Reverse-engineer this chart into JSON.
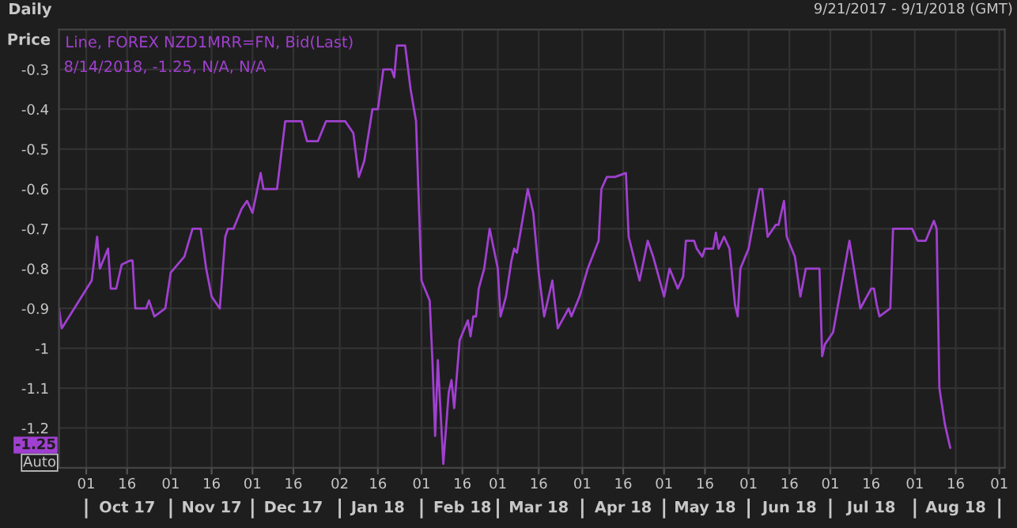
{
  "chart_data": {
    "type": "line",
    "title": "Daily",
    "subtitle": "9/21/2017 - 9/1/2018 (GMT)",
    "ylabel": "Price",
    "x": [
      "2017-09-21",
      "2017-09-22",
      "2017-10-03",
      "2017-10-05",
      "2017-10-06",
      "2017-10-09",
      "2017-10-10",
      "2017-10-12",
      "2017-10-14",
      "2017-10-17",
      "2017-10-18",
      "2017-10-19",
      "2017-10-23",
      "2017-10-24",
      "2017-10-26",
      "2017-10-30",
      "2017-11-01",
      "2017-11-06",
      "2017-11-09",
      "2017-11-12",
      "2017-11-14",
      "2017-11-16",
      "2017-11-19",
      "2017-11-21",
      "2017-11-22",
      "2017-11-24",
      "2017-11-27",
      "2017-11-29",
      "2017-12-01",
      "2017-12-04",
      "2017-12-05",
      "2017-12-10",
      "2017-12-13",
      "2017-12-19",
      "2017-12-21",
      "2017-12-25",
      "2017-12-28",
      "2018-01-04",
      "2018-01-07",
      "2018-01-09",
      "2018-01-11",
      "2018-01-14",
      "2018-01-16",
      "2018-01-18",
      "2018-01-21",
      "2018-01-22",
      "2018-01-23",
      "2018-01-24",
      "2018-01-26",
      "2018-01-28",
      "2018-01-30",
      "2018-02-01",
      "2018-02-04",
      "2018-02-05",
      "2018-02-06",
      "2018-02-07",
      "2018-02-08",
      "2018-02-09",
      "2018-02-11",
      "2018-02-12",
      "2018-02-13",
      "2018-02-15",
      "2018-02-18",
      "2018-02-19",
      "2018-02-20",
      "2018-02-21",
      "2018-02-22",
      "2018-02-24",
      "2018-02-26",
      "2018-03-01",
      "2018-03-02",
      "2018-03-04",
      "2018-03-06",
      "2018-03-07",
      "2018-03-08",
      "2018-03-12",
      "2018-03-14",
      "2018-03-16",
      "2018-03-18",
      "2018-03-21",
      "2018-03-23",
      "2018-03-27",
      "2018-03-28",
      "2018-03-31",
      "2018-04-03",
      "2018-04-07",
      "2018-04-08",
      "2018-04-10",
      "2018-04-13",
      "2018-04-17",
      "2018-04-18",
      "2018-04-22",
      "2018-04-25",
      "2018-04-27",
      "2018-05-01",
      "2018-05-03",
      "2018-05-06",
      "2018-05-08",
      "2018-05-09",
      "2018-05-12",
      "2018-05-13",
      "2018-05-15",
      "2018-05-16",
      "2018-05-19",
      "2018-05-20",
      "2018-05-21",
      "2018-05-23",
      "2018-05-25",
      "2018-05-27",
      "2018-05-28",
      "2018-05-29",
      "2018-06-01",
      "2018-06-05",
      "2018-06-06",
      "2018-06-08",
      "2018-06-11",
      "2018-06-12",
      "2018-06-14",
      "2018-06-15",
      "2018-06-18",
      "2018-06-20",
      "2018-06-22",
      "2018-06-27",
      "2018-06-28",
      "2018-06-29",
      "2018-07-02",
      "2018-07-08",
      "2018-07-12",
      "2018-07-16",
      "2018-07-17",
      "2018-07-18",
      "2018-07-19",
      "2018-07-23",
      "2018-07-24",
      "2018-07-31",
      "2018-08-02",
      "2018-08-05",
      "2018-08-08",
      "2018-08-09",
      "2018-08-10",
      "2018-08-12",
      "2018-08-14"
    ],
    "series": [
      {
        "name": "Line, FOREX NZD1MRR=FN, Bid(Last)",
        "color": "#a040d0",
        "values": [
          -0.9,
          -0.95,
          -0.83,
          -0.72,
          -0.8,
          -0.75,
          -0.85,
          -0.85,
          -0.79,
          -0.78,
          -0.78,
          -0.9,
          -0.9,
          -0.88,
          -0.92,
          -0.9,
          -0.81,
          -0.77,
          -0.7,
          -0.7,
          -0.8,
          -0.87,
          -0.9,
          -0.72,
          -0.7,
          -0.7,
          -0.65,
          -0.63,
          -0.66,
          -0.56,
          -0.6,
          -0.6,
          -0.43,
          -0.43,
          -0.48,
          -0.48,
          -0.43,
          -0.43,
          -0.46,
          -0.57,
          -0.53,
          -0.4,
          -0.4,
          -0.3,
          -0.3,
          -0.32,
          -0.24,
          -0.24,
          -0.24,
          -0.35,
          -0.43,
          -0.83,
          -0.88,
          -1.03,
          -1.22,
          -1.03,
          -1.16,
          -1.29,
          -1.11,
          -1.08,
          -1.15,
          -0.98,
          -0.93,
          -0.97,
          -0.92,
          -0.92,
          -0.85,
          -0.8,
          -0.7,
          -0.8,
          -0.92,
          -0.87,
          -0.78,
          -0.75,
          -0.76,
          -0.6,
          -0.66,
          -0.81,
          -0.92,
          -0.83,
          -0.95,
          -0.9,
          -0.92,
          -0.87,
          -0.8,
          -0.73,
          -0.6,
          -0.57,
          -0.57,
          -0.56,
          -0.72,
          -0.83,
          -0.73,
          -0.77,
          -0.87,
          -0.8,
          -0.85,
          -0.82,
          -0.73,
          -0.73,
          -0.75,
          -0.77,
          -0.75,
          -0.75,
          -0.71,
          -0.75,
          -0.72,
          -0.75,
          -0.89,
          -0.92,
          -0.8,
          -0.75,
          -0.6,
          -0.6,
          -0.72,
          -0.69,
          -0.69,
          -0.63,
          -0.72,
          -0.77,
          -0.87,
          -0.8,
          -0.8,
          -1.02,
          -0.99,
          -0.96,
          -0.73,
          -0.9,
          -0.85,
          -0.85,
          -0.89,
          -0.92,
          -0.9,
          -0.7,
          -0.7,
          -0.73,
          -0.73,
          -0.68,
          -0.7,
          -1.1,
          -1.19,
          -1.25
        ]
      }
    ],
    "xlim": [
      "2017-09-21",
      "2018-09-03"
    ],
    "xticks": [
      {
        "value": "2017-10-01",
        "label": "01"
      },
      {
        "value": "2017-10-16",
        "label": "16"
      },
      {
        "value": "2017-11-01",
        "label": "01"
      },
      {
        "value": "2017-11-16",
        "label": "16"
      },
      {
        "value": "2017-12-01",
        "label": "01"
      },
      {
        "value": "2017-12-16",
        "label": "16"
      },
      {
        "value": "2018-01-02",
        "label": "02"
      },
      {
        "value": "2018-01-16",
        "label": "16"
      },
      {
        "value": "2018-02-01",
        "label": "01"
      },
      {
        "value": "2018-02-16",
        "label": "16"
      },
      {
        "value": "2018-03-01",
        "label": "01"
      },
      {
        "value": "2018-03-16",
        "label": "16"
      },
      {
        "value": "2018-04-01",
        "label": "01"
      },
      {
        "value": "2018-04-16",
        "label": "16"
      },
      {
        "value": "2018-05-01",
        "label": "01"
      },
      {
        "value": "2018-05-16",
        "label": "16"
      },
      {
        "value": "2018-06-01",
        "label": "01"
      },
      {
        "value": "2018-06-16",
        "label": "16"
      },
      {
        "value": "2018-07-01",
        "label": "01"
      },
      {
        "value": "2018-07-16",
        "label": "16"
      },
      {
        "value": "2018-08-01",
        "label": "01"
      },
      {
        "value": "2018-08-16",
        "label": "16"
      },
      {
        "value": "2018-09-01",
        "label": "01"
      }
    ],
    "x2lim": [
      "2017-09-21",
      "2018-09-03"
    ],
    "x2ticks": [
      {
        "value": "2017-10-01",
        "label": null
      },
      {
        "value": "2017-10-16",
        "label": "Oct 17"
      },
      {
        "value": "2017-11-01",
        "label": null
      },
      {
        "value": "2017-11-16",
        "label": "Nov 17"
      },
      {
        "value": "2017-12-01",
        "label": null
      },
      {
        "value": "2017-12-16",
        "label": "Dec 17"
      },
      {
        "value": "2018-01-02",
        "label": null
      },
      {
        "value": "2018-01-16",
        "label": "Jan 18"
      },
      {
        "value": "2018-02-01",
        "label": null
      },
      {
        "value": "2018-02-16",
        "label": "Feb 18"
      },
      {
        "value": "2018-03-01",
        "label": null
      },
      {
        "value": "2018-03-16",
        "label": "Mar 18"
      },
      {
        "value": "2018-04-01",
        "label": null
      },
      {
        "value": "2018-04-16",
        "label": "Apr 18"
      },
      {
        "value": "2018-05-01",
        "label": null
      },
      {
        "value": "2018-05-16",
        "label": "May 18"
      },
      {
        "value": "2018-06-01",
        "label": null
      },
      {
        "value": "2018-06-16",
        "label": "Jun 18"
      },
      {
        "value": "2018-07-01",
        "label": null
      },
      {
        "value": "2018-07-16",
        "label": "Jul 18"
      },
      {
        "value": "2018-08-01",
        "label": null
      },
      {
        "value": "2018-08-16",
        "label": "Aug 18"
      },
      {
        "value": "2018-09-01",
        "label": null
      }
    ],
    "ylim": [
      -1.3,
      -0.2
    ],
    "yticks": [
      -0.3,
      -0.4,
      -0.5,
      -0.6,
      -0.7,
      -0.8,
      -0.9,
      {
        "value": -1.0,
        "label": "-1"
      },
      -1.1,
      -1.2
    ],
    "annotations": [
      "8/14/2018, -1.25, N/A, N/A",
      "-1.25",
      "Auto"
    ],
    "grid": true,
    "legend": "top left",
    "marker": "none",
    "line_style": "solid"
  }
}
